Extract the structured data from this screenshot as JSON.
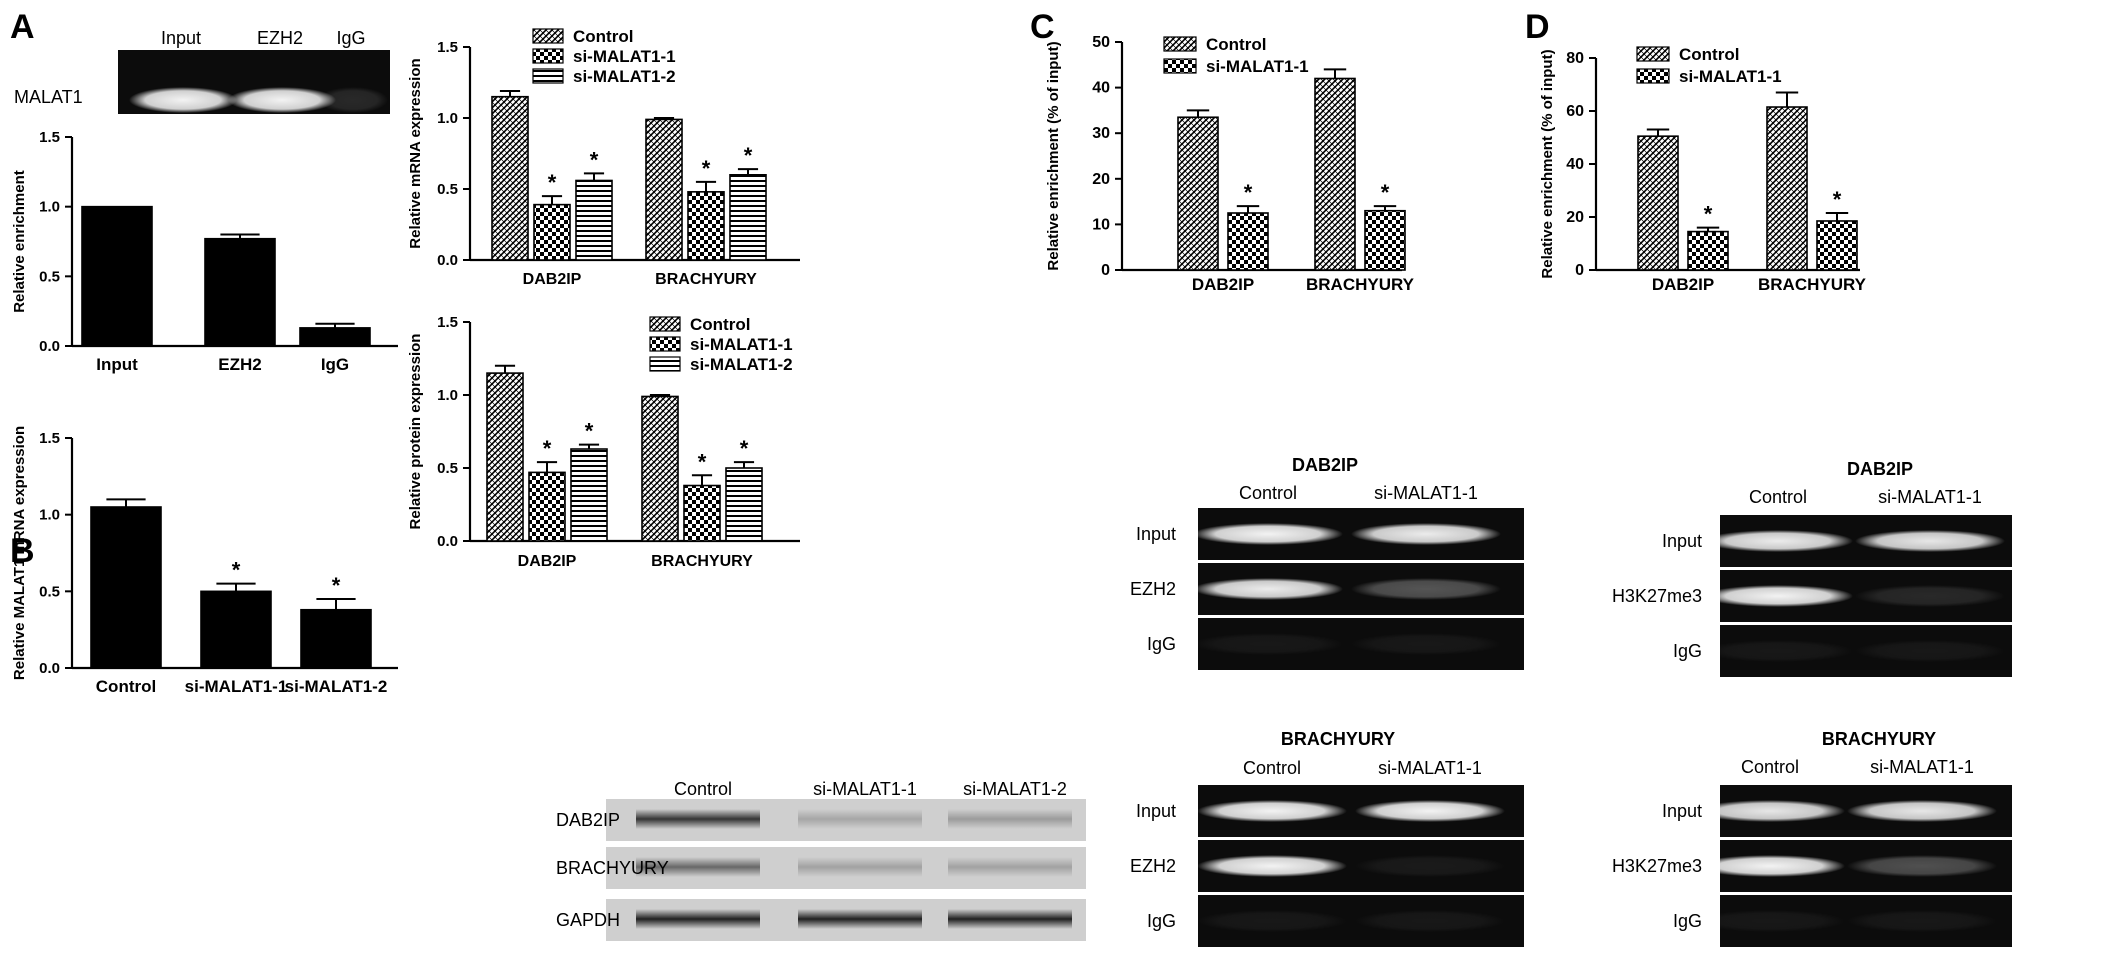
{
  "panels": {
    "A": "A",
    "B": "B",
    "C": "C",
    "D": "D"
  },
  "chart_data": [
    {
      "id": "A",
      "type": "bar",
      "categories": [
        "Input",
        "EZH2",
        "IgG"
      ],
      "series": [
        {
          "values": [
            1.0,
            0.77,
            0.13
          ],
          "errors": [
            0.0,
            0.03,
            0.03
          ],
          "pattern": "solid"
        }
      ],
      "ylabel": "Relative enrichment",
      "ylim": [
        0,
        1.5
      ],
      "yticks": [
        "0.0",
        "0.5",
        "1.0",
        "1.5"
      ],
      "stars": []
    },
    {
      "id": "B",
      "type": "bar",
      "categories": [
        "Control",
        "si-MALAT1-1",
        "si-MALAT1-2"
      ],
      "series": [
        {
          "values": [
            1.05,
            0.5,
            0.38
          ],
          "errors": [
            0.05,
            0.05,
            0.07
          ],
          "pattern": "solid"
        }
      ],
      "ylabel": "Relative MALAT1 mRNA expression",
      "ylim": [
        0,
        1.5
      ],
      "yticks": [
        "0.0",
        "0.5",
        "1.0",
        "1.5"
      ],
      "stars": [
        false,
        true,
        true
      ]
    },
    {
      "id": "mrna",
      "type": "bar",
      "categories": [
        "DAB2IP",
        "BRACHYURY"
      ],
      "series": [
        {
          "name": "Control",
          "values": [
            1.15,
            0.99
          ],
          "errors": [
            0.04,
            0.01
          ],
          "stars": [
            false,
            false
          ],
          "pattern": "hatch"
        },
        {
          "name": "si-MALAT1-1",
          "values": [
            0.39,
            0.48
          ],
          "errors": [
            0.06,
            0.07
          ],
          "stars": [
            true,
            true
          ],
          "pattern": "checker"
        },
        {
          "name": "si-MALAT1-2",
          "values": [
            0.56,
            0.6
          ],
          "errors": [
            0.05,
            0.04
          ],
          "stars": [
            true,
            true
          ],
          "pattern": "hlines"
        }
      ],
      "ylabel": "Relative mRNA expression",
      "ylim": [
        0,
        1.5
      ],
      "yticks": [
        "0.0",
        "0.5",
        "1.0",
        "1.5"
      ]
    },
    {
      "id": "protein",
      "type": "bar",
      "categories": [
        "DAB2IP",
        "BRACHYURY"
      ],
      "series": [
        {
          "name": "Control",
          "values": [
            1.15,
            0.99
          ],
          "errors": [
            0.05,
            0.01
          ],
          "stars": [
            false,
            false
          ],
          "pattern": "hatch"
        },
        {
          "name": "si-MALAT1-1",
          "values": [
            0.47,
            0.38
          ],
          "errors": [
            0.07,
            0.07
          ],
          "stars": [
            true,
            true
          ],
          "pattern": "checker"
        },
        {
          "name": "si-MALAT1-2",
          "values": [
            0.63,
            0.5
          ],
          "errors": [
            0.03,
            0.04
          ],
          "stars": [
            true,
            true
          ],
          "pattern": "hlines"
        }
      ],
      "ylabel": "Relative protein expression",
      "ylim": [
        0,
        1.5
      ],
      "yticks": [
        "0.0",
        "0.5",
        "1.0",
        "1.5"
      ]
    },
    {
      "id": "C",
      "type": "bar",
      "categories": [
        "DAB2IP",
        "BRACHYURY"
      ],
      "series": [
        {
          "name": "Control",
          "values": [
            33.5,
            42
          ],
          "errors": [
            1.5,
            2
          ],
          "stars": [
            false,
            false
          ],
          "pattern": "hatch"
        },
        {
          "name": "si-MALAT1-1",
          "values": [
            12.5,
            13
          ],
          "errors": [
            1.5,
            1
          ],
          "stars": [
            true,
            true
          ],
          "pattern": "checker"
        }
      ],
      "ylabel": "Relative enrichment (% of input)",
      "ylim": [
        0,
        50
      ],
      "yticks": [
        "0",
        "10",
        "20",
        "30",
        "40",
        "50"
      ]
    },
    {
      "id": "D",
      "type": "bar",
      "categories": [
        "DAB2IP",
        "BRACHYURY"
      ],
      "series": [
        {
          "name": "Control",
          "values": [
            50.5,
            61.5
          ],
          "errors": [
            2.5,
            5.5
          ],
          "stars": [
            false,
            false
          ],
          "pattern": "hatch"
        },
        {
          "name": "si-MALAT1-1",
          "values": [
            14.5,
            18.5
          ],
          "errors": [
            1.5,
            3
          ],
          "stars": [
            true,
            true
          ],
          "pattern": "checker"
        }
      ],
      "ylabel": "Relative enrichment (% of input)",
      "ylim": [
        0,
        80
      ],
      "yticks": [
        "0",
        "20",
        "40",
        "60",
        "80"
      ]
    }
  ],
  "blots": {
    "A": {
      "columns": [
        "Input",
        "EZH2",
        "IgG"
      ],
      "row_label": "MALAT1",
      "intensities": [
        0.95,
        0.95,
        0.12
      ]
    },
    "western": {
      "columns": [
        "Control",
        "si-MALAT1-1",
        "si-MALAT1-2"
      ],
      "rows": [
        {
          "label": "DAB2IP",
          "intensities": [
            0.75,
            0.2,
            0.25
          ]
        },
        {
          "label": "BRACHYURY",
          "intensities": [
            0.5,
            0.22,
            0.22
          ]
        },
        {
          "label": "GAPDH",
          "intensities": [
            0.85,
            0.85,
            0.85
          ]
        }
      ]
    },
    "C_top": {
      "title": "DAB2IP",
      "columns": [
        "Control",
        "si-MALAT1-1"
      ],
      "rows": [
        {
          "label": "Input",
          "intensities": [
            0.95,
            0.92
          ]
        },
        {
          "label": "EZH2",
          "intensities": [
            0.92,
            0.3
          ]
        },
        {
          "label": "IgG",
          "intensities": [
            0.05,
            0.05
          ]
        }
      ]
    },
    "C_bottom": {
      "title": "BRACHYURY",
      "columns": [
        "Control",
        "si-MALAT1-1"
      ],
      "rows": [
        {
          "label": "Input",
          "intensities": [
            0.95,
            0.95
          ]
        },
        {
          "label": "EZH2",
          "intensities": [
            0.95,
            0.06
          ]
        },
        {
          "label": "IgG",
          "intensities": [
            0.05,
            0.05
          ]
        }
      ]
    },
    "D_top": {
      "title": "DAB2IP",
      "columns": [
        "Control",
        "si-MALAT1-1"
      ],
      "rows": [
        {
          "label": "Input",
          "intensities": [
            0.92,
            0.9
          ]
        },
        {
          "label": "H3K27me3",
          "intensities": [
            0.95,
            0.12
          ]
        },
        {
          "label": "IgG",
          "intensities": [
            0.05,
            0.05
          ]
        }
      ]
    },
    "D_bottom": {
      "title": "BRACHYURY",
      "columns": [
        "Control",
        "si-MALAT1-1"
      ],
      "rows": [
        {
          "label": "Input",
          "intensities": [
            0.9,
            0.9
          ]
        },
        {
          "label": "H3K27me3",
          "intensities": [
            0.95,
            0.28
          ]
        },
        {
          "label": "IgG",
          "intensities": [
            0.05,
            0.05
          ]
        }
      ]
    }
  }
}
